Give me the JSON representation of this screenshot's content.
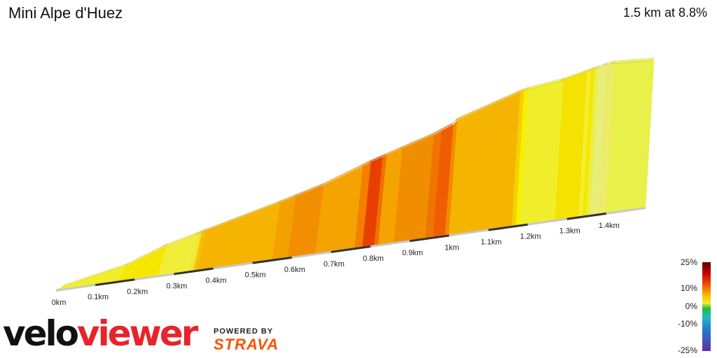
{
  "header": {
    "title": "Mini Alpe d'Huez",
    "summary": "1.5 km at 8.8%"
  },
  "branding": {
    "logo_part1": "velo",
    "logo_part2": "viewer",
    "powered_by": "POWERED BY",
    "strava": "STRAVA"
  },
  "chart_data": {
    "type": "area",
    "title": "Mini Alpe d'Huez",
    "x_ticks": [
      "0km",
      "0.1km",
      "0.2km",
      "0.3km",
      "0.4km",
      "0.5km",
      "0.6km",
      "0.7km",
      "0.8km",
      "0.9km",
      "1km",
      "1.1km",
      "1.2km",
      "1.3km",
      "1.4km"
    ],
    "xlim": [
      0,
      1.5
    ],
    "segments": [
      {
        "from": 0.0,
        "to": 0.16,
        "color": "#f3ee2a"
      },
      {
        "from": 0.16,
        "to": 0.26,
        "color": "#f7e600"
      },
      {
        "from": 0.26,
        "to": 0.34,
        "color": "#f0ee3a"
      },
      {
        "from": 0.34,
        "to": 0.35,
        "color": "#f1e43d"
      },
      {
        "from": 0.35,
        "to": 0.36,
        "color": "#f7c000"
      },
      {
        "from": 0.36,
        "to": 0.55,
        "color": "#f5b400"
      },
      {
        "from": 0.55,
        "to": 0.59,
        "color": "#f3a100"
      },
      {
        "from": 0.59,
        "to": 0.66,
        "color": "#f18f00"
      },
      {
        "from": 0.66,
        "to": 0.76,
        "color": "#f4a300"
      },
      {
        "from": 0.76,
        "to": 0.78,
        "color": "#f37f00"
      },
      {
        "from": 0.78,
        "to": 0.81,
        "color": "#e83f00"
      },
      {
        "from": 0.81,
        "to": 0.82,
        "color": "#f07000"
      },
      {
        "from": 0.82,
        "to": 0.86,
        "color": "#f5a300"
      },
      {
        "from": 0.86,
        "to": 0.94,
        "color": "#f18e00"
      },
      {
        "from": 0.94,
        "to": 0.96,
        "color": "#f07400"
      },
      {
        "from": 0.96,
        "to": 0.99,
        "color": "#ef5d00"
      },
      {
        "from": 0.99,
        "to": 1.0,
        "color": "#f28b00"
      },
      {
        "from": 1.0,
        "to": 1.16,
        "color": "#f5b400"
      },
      {
        "from": 1.16,
        "to": 1.17,
        "color": "#f6d000"
      },
      {
        "from": 1.17,
        "to": 1.18,
        "color": "#f7f000"
      },
      {
        "from": 1.18,
        "to": 1.27,
        "color": "#f0ee2a"
      },
      {
        "from": 1.27,
        "to": 1.33,
        "color": "#f5e200"
      },
      {
        "from": 1.33,
        "to": 1.34,
        "color": "#f2ee30"
      },
      {
        "from": 1.34,
        "to": 1.35,
        "color": "#f5e800"
      },
      {
        "from": 1.35,
        "to": 1.36,
        "color": "#eaee4a"
      },
      {
        "from": 1.36,
        "to": 1.38,
        "color": "#e8ee7a"
      },
      {
        "from": 1.38,
        "to": 1.4,
        "color": "#eceb6a"
      },
      {
        "from": 1.4,
        "to": 1.5,
        "color": "#e8f04a"
      }
    ],
    "legend": {
      "labels": [
        "25%",
        "10%",
        "0%",
        "-10%",
        "-25%"
      ],
      "values": [
        25,
        10,
        0,
        -10,
        -25
      ]
    },
    "grid": false
  }
}
